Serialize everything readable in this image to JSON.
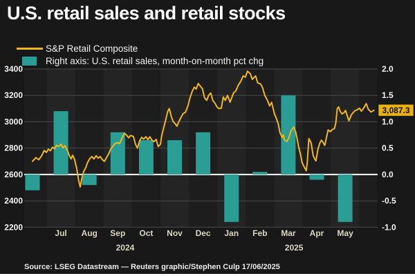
{
  "title": "U.S. retail sales and retail stocks",
  "legend": {
    "line": {
      "label": "S&P Retail Composite",
      "color": "#f2b718"
    },
    "bar": {
      "label": "Right axis: U.S. retail sales, month-on-month pct chg",
      "color": "#2a9d94"
    }
  },
  "source": "Source: LSEG Datastream — Reuters graphic/Stephen Culp 17/06/2025",
  "colors": {
    "background": "#181818",
    "band_dark": "#1d1d1d",
    "band_light": "#242424",
    "grid": "#4a4a4a",
    "zero_line": "#ffffff",
    "bar": "#2a9d94",
    "line": "#f2b718",
    "badge_bg": "#e9b30f",
    "badge_text": "#111111"
  },
  "chart_data": {
    "type": "line+bar",
    "title": "U.S. retail sales and retail stocks",
    "left_axis": {
      "ticks": [
        "3400",
        "3200",
        "3000",
        "2800",
        "2600",
        "2400",
        "2200"
      ],
      "range": [
        2200,
        3400
      ],
      "zero_equivalent": 2600
    },
    "right_axis": {
      "ticks": [
        "2.0",
        "1.5",
        "1.0",
        "0.5",
        "0.0",
        "-0.5",
        "-1.0"
      ],
      "range": [
        -1.0,
        2.0
      ]
    },
    "x_axis": {
      "month_labels": [
        "Jul",
        "Aug",
        "Sep",
        "Oct",
        "Nov",
        "Dec",
        "Jan",
        "Feb",
        "Mar",
        "Apr",
        "May"
      ],
      "year_labels": [
        {
          "label": "2024",
          "position_month": 3.26
        },
        {
          "label": "2025",
          "position_month": 9.2
        }
      ]
    },
    "bars": {
      "name": "U.S. retail sales, month-on-month pct chg",
      "axis": "right",
      "categories": [
        "Jun 2024",
        "Jul 2024",
        "Aug 2024",
        "Sep 2024",
        "Oct 2024",
        "Nov 2024",
        "Dec 2024",
        "Jan 2025",
        "Feb 2025",
        "Mar 2025",
        "Apr 2025",
        "May 2025"
      ],
      "values": [
        -0.3,
        1.2,
        -0.2,
        0.8,
        0.65,
        0.65,
        0.8,
        -0.9,
        0.05,
        1.5,
        -0.1,
        -0.9
      ]
    },
    "line": {
      "name": "S&P Retail Composite",
      "axis": "left",
      "last_value": 3087.3,
      "last_value_label": "3,087.3",
      "points": [
        [
          0.0,
          2700
        ],
        [
          0.12,
          2728
        ],
        [
          0.22,
          2712
        ],
        [
          0.32,
          2742
        ],
        [
          0.41,
          2782
        ],
        [
          0.49,
          2768
        ],
        [
          0.56,
          2792
        ],
        [
          0.63,
          2780
        ],
        [
          0.7,
          2806
        ],
        [
          0.78,
          2795
        ],
        [
          0.85,
          2822
        ],
        [
          0.92,
          2812
        ],
        [
          1.0,
          2830
        ],
        [
          1.07,
          2802
        ],
        [
          1.14,
          2818
        ],
        [
          1.22,
          2788
        ],
        [
          1.29,
          2745
        ],
        [
          1.36,
          2718
        ],
        [
          1.41,
          2746
        ],
        [
          1.48,
          2715
        ],
        [
          1.56,
          2640
        ],
        [
          1.63,
          2545
        ],
        [
          1.68,
          2505
        ],
        [
          1.73,
          2568
        ],
        [
          1.8,
          2622
        ],
        [
          1.87,
          2652
        ],
        [
          1.94,
          2692
        ],
        [
          2.02,
          2722
        ],
        [
          2.09,
          2736
        ],
        [
          2.16,
          2718
        ],
        [
          2.24,
          2742
        ],
        [
          2.31,
          2724
        ],
        [
          2.38,
          2736
        ],
        [
          2.46,
          2712
        ],
        [
          2.53,
          2700
        ],
        [
          2.6,
          2726
        ],
        [
          2.67,
          2752
        ],
        [
          2.75,
          2792
        ],
        [
          2.82,
          2812
        ],
        [
          2.89,
          2832
        ],
        [
          2.99,
          2842
        ],
        [
          3.06,
          2834
        ],
        [
          3.14,
          2872
        ],
        [
          3.23,
          2912
        ],
        [
          3.31,
          2898
        ],
        [
          3.38,
          2878
        ],
        [
          3.45,
          2896
        ],
        [
          3.55,
          2888
        ],
        [
          3.62,
          2830
        ],
        [
          3.69,
          2800
        ],
        [
          3.77,
          2856
        ],
        [
          3.84,
          2882
        ],
        [
          3.91,
          2868
        ],
        [
          3.99,
          2886
        ],
        [
          4.06,
          2864
        ],
        [
          4.13,
          2886
        ],
        [
          4.21,
          2858
        ],
        [
          4.28,
          2850
        ],
        [
          4.35,
          2866
        ],
        [
          4.42,
          2812
        ],
        [
          4.5,
          2830
        ],
        [
          4.55,
          2900
        ],
        [
          4.62,
          2960
        ],
        [
          4.69,
          3020
        ],
        [
          4.76,
          3080
        ],
        [
          4.81,
          3100
        ],
        [
          4.88,
          3040
        ],
        [
          4.95,
          3000
        ],
        [
          5.02,
          2985
        ],
        [
          5.08,
          2966
        ],
        [
          5.15,
          3002
        ],
        [
          5.22,
          3032
        ],
        [
          5.3,
          3062
        ],
        [
          5.38,
          3072
        ],
        [
          5.47,
          3122
        ],
        [
          5.54,
          3182
        ],
        [
          5.62,
          3232
        ],
        [
          5.69,
          3262
        ],
        [
          5.76,
          3248
        ],
        [
          5.83,
          3290
        ],
        [
          5.91,
          3268
        ],
        [
          5.98,
          3248
        ],
        [
          6.05,
          3182
        ],
        [
          6.13,
          3162
        ],
        [
          6.2,
          3202
        ],
        [
          6.27,
          3218
        ],
        [
          6.34,
          3162
        ],
        [
          6.42,
          3140
        ],
        [
          6.49,
          3112
        ],
        [
          6.56,
          3100
        ],
        [
          6.64,
          3102
        ],
        [
          6.71,
          3188
        ],
        [
          6.78,
          3162
        ],
        [
          6.86,
          3200
        ],
        [
          6.95,
          3148
        ],
        [
          7.07,
          3218
        ],
        [
          7.15,
          3234
        ],
        [
          7.24,
          3278
        ],
        [
          7.32,
          3305
        ],
        [
          7.41,
          3347
        ],
        [
          7.49,
          3338
        ],
        [
          7.56,
          3384
        ],
        [
          7.66,
          3365
        ],
        [
          7.73,
          3321
        ],
        [
          7.8,
          3338
        ],
        [
          7.85,
          3347
        ],
        [
          7.92,
          3295
        ],
        [
          8.02,
          3287
        ],
        [
          8.09,
          3260
        ],
        [
          8.17,
          3200
        ],
        [
          8.26,
          3164
        ],
        [
          8.34,
          3120
        ],
        [
          8.41,
          3147
        ],
        [
          8.51,
          3059
        ],
        [
          8.58,
          3024
        ],
        [
          8.65,
          2980
        ],
        [
          8.7,
          2920
        ],
        [
          8.78,
          2880
        ],
        [
          8.82,
          2900
        ],
        [
          8.87,
          2860
        ],
        [
          8.95,
          2850
        ],
        [
          9.02,
          2880
        ],
        [
          9.09,
          2930
        ],
        [
          9.19,
          2960
        ],
        [
          9.26,
          2920
        ],
        [
          9.31,
          2870
        ],
        [
          9.36,
          2810
        ],
        [
          9.43,
          2750
        ],
        [
          9.48,
          2693
        ],
        [
          9.55,
          2660
        ],
        [
          9.63,
          2628
        ],
        [
          9.67,
          2700
        ],
        [
          9.72,
          2872
        ],
        [
          9.8,
          2840
        ],
        [
          9.87,
          2745
        ],
        [
          9.92,
          2720
        ],
        [
          9.97,
          2703
        ],
        [
          10.04,
          2790
        ],
        [
          10.11,
          2840
        ],
        [
          10.16,
          2860
        ],
        [
          10.21,
          2848
        ],
        [
          10.28,
          2820
        ],
        [
          10.36,
          2900
        ],
        [
          10.4,
          2938
        ],
        [
          10.48,
          2925
        ],
        [
          10.55,
          2942
        ],
        [
          10.62,
          2948
        ],
        [
          10.67,
          2990
        ],
        [
          10.72,
          3100
        ],
        [
          10.77,
          3112
        ],
        [
          10.82,
          3080
        ],
        [
          10.89,
          3059
        ],
        [
          10.96,
          3070
        ],
        [
          11.01,
          3086
        ],
        [
          11.08,
          3040
        ],
        [
          11.13,
          3007
        ],
        [
          11.21,
          3050
        ],
        [
          11.28,
          3070
        ],
        [
          11.35,
          3085
        ],
        [
          11.42,
          3090
        ],
        [
          11.5,
          3103
        ],
        [
          11.57,
          3080
        ],
        [
          11.64,
          3100
        ],
        [
          11.74,
          3138
        ],
        [
          11.81,
          3095
        ],
        [
          11.91,
          3074
        ],
        [
          12.01,
          3087.3
        ]
      ]
    }
  }
}
